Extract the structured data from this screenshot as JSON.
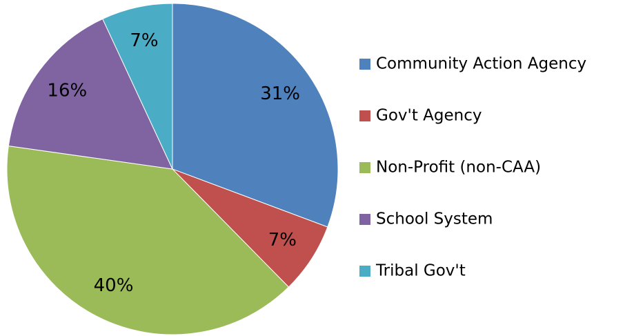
{
  "chart_data": {
    "type": "pie",
    "categories": [
      "Community Action Agency",
      "Gov't Agency",
      "Non-Profit (non-CAA)",
      "School System",
      "Tribal Gov't"
    ],
    "values": [
      31,
      7,
      40,
      16,
      7
    ],
    "value_labels": [
      "31%",
      "7%",
      "40%",
      "16%",
      "7%"
    ],
    "colors": [
      "#4f81bd",
      "#c0504d",
      "#9bbb59",
      "#8064a2",
      "#4bacc6"
    ],
    "legend": "right"
  }
}
